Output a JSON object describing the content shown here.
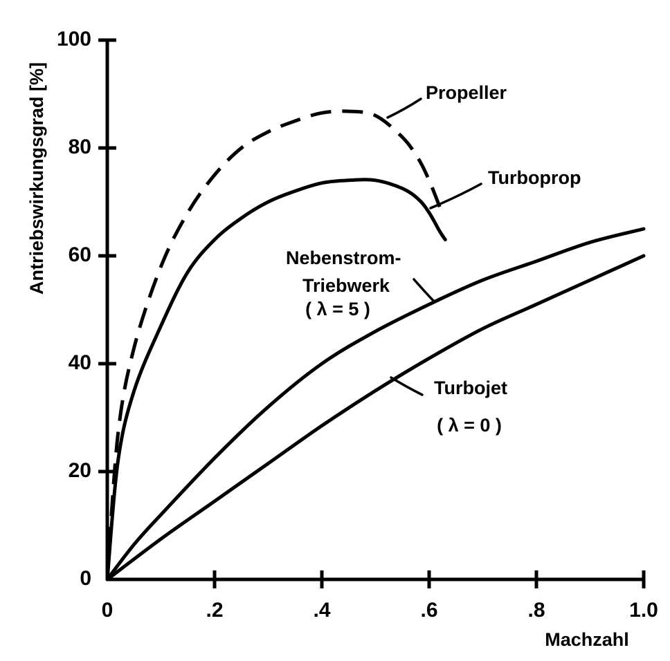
{
  "chart_data": {
    "type": "line",
    "xlabel": "Machzahl",
    "ylabel": "Antriebswirkungsgrad [%]",
    "xlim": [
      0,
      1.0
    ],
    "ylim": [
      0,
      100
    ],
    "x_ticks": [
      "0",
      ".2",
      ".4",
      ".6",
      ".8",
      "1.0"
    ],
    "y_ticks": [
      "0",
      "20",
      "40",
      "60",
      "80",
      "100"
    ],
    "grid": false,
    "series": [
      {
        "name": "Propeller",
        "style": "dashed",
        "x": [
          0,
          0.02,
          0.05,
          0.1,
          0.15,
          0.2,
          0.25,
          0.3,
          0.35,
          0.4,
          0.45,
          0.5,
          0.55,
          0.58,
          0.6,
          0.62
        ],
        "y": [
          0,
          27,
          43,
          58,
          68,
          75,
          80,
          83,
          85,
          86.5,
          86.8,
          86,
          82,
          78,
          74,
          69
        ]
      },
      {
        "name": "Turboprop",
        "style": "solid",
        "x": [
          0,
          0.02,
          0.05,
          0.1,
          0.15,
          0.2,
          0.25,
          0.3,
          0.35,
          0.4,
          0.45,
          0.5,
          0.55,
          0.58,
          0.6,
          0.62,
          0.63
        ],
        "y": [
          0,
          22,
          35,
          47,
          57,
          63,
          67,
          70,
          72,
          73.5,
          74,
          74,
          72.5,
          70.5,
          68,
          64.5,
          63
        ]
      },
      {
        "name": "Nebenstrom-Triebwerk",
        "sublabel": "( λ = 5 )",
        "style": "solid",
        "x": [
          0,
          0.05,
          0.1,
          0.2,
          0.3,
          0.4,
          0.5,
          0.6,
          0.7,
          0.8,
          0.9,
          1.0
        ],
        "y": [
          0,
          6.5,
          12,
          22.5,
          32,
          40,
          46,
          51,
          55.5,
          59,
          62.5,
          65
        ]
      },
      {
        "name": "Turbojet",
        "sublabel": "( λ = 0 )",
        "style": "solid",
        "x": [
          0,
          0.1,
          0.2,
          0.3,
          0.4,
          0.5,
          0.6,
          0.7,
          0.8,
          0.9,
          1.0
        ],
        "y": [
          0,
          7.5,
          14.5,
          21.5,
          28.5,
          35,
          41,
          46.5,
          51,
          55.5,
          60
        ]
      }
    ]
  }
}
